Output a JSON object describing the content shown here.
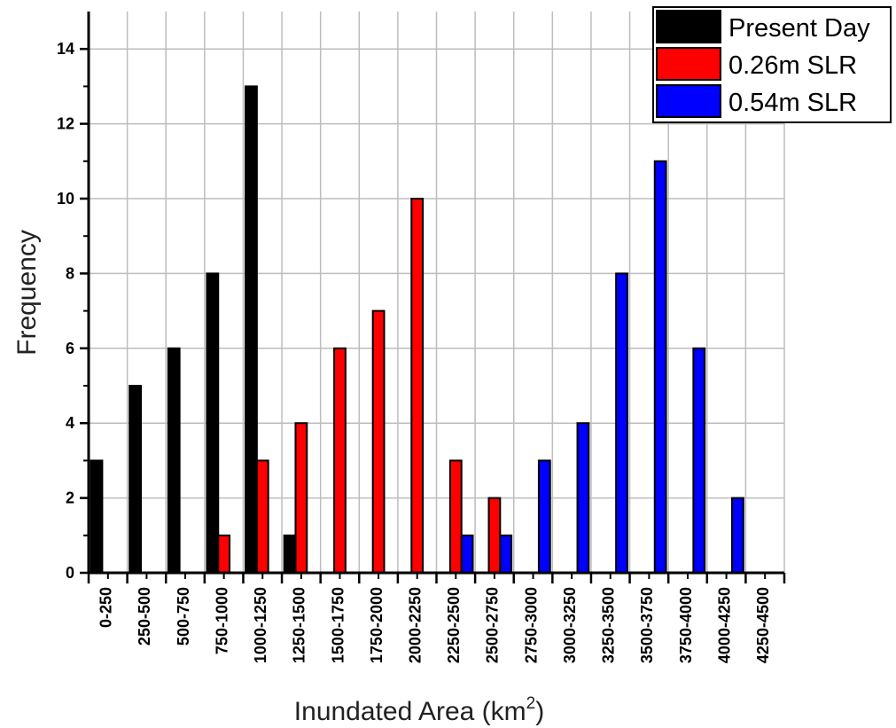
{
  "chart_data": {
    "type": "bar",
    "xlabel": "Inundated Area (km",
    "xlabel_superscript": "2",
    "xlabel_suffix": ")",
    "ylabel": "Frequency",
    "ylim": [
      0,
      15
    ],
    "yticks": [
      0,
      2,
      4,
      6,
      8,
      10,
      12,
      14
    ],
    "grid": true,
    "legend_position": "top-right",
    "categories": [
      "0-250",
      "250-500",
      "500-750",
      "750-1000",
      "1000-1250",
      "1250-1500",
      "1500-1750",
      "1750-2000",
      "2000-2250",
      "2250-2500",
      "2500-2750",
      "2750-3000",
      "3000-3250",
      "3250-3500",
      "3500-3750",
      "3750-4000",
      "4000-4250",
      "4250-4500"
    ],
    "series": [
      {
        "name": "Present Day",
        "color": "#000000",
        "values": [
          3,
          5,
          6,
          8,
          13,
          1,
          0,
          0,
          0,
          0,
          0,
          0,
          0,
          0,
          0,
          0,
          0,
          0
        ]
      },
      {
        "name": "0.26m SLR",
        "color": "#ff0000",
        "values": [
          0,
          0,
          0,
          1,
          3,
          4,
          6,
          7,
          10,
          3,
          2,
          0,
          0,
          0,
          0,
          0,
          0,
          0
        ]
      },
      {
        "name": "0.54m SLR",
        "color": "#0000ff",
        "values": [
          0,
          0,
          0,
          0,
          0,
          0,
          0,
          0,
          0,
          1,
          1,
          3,
          4,
          8,
          11,
          6,
          2,
          0
        ]
      }
    ]
  }
}
